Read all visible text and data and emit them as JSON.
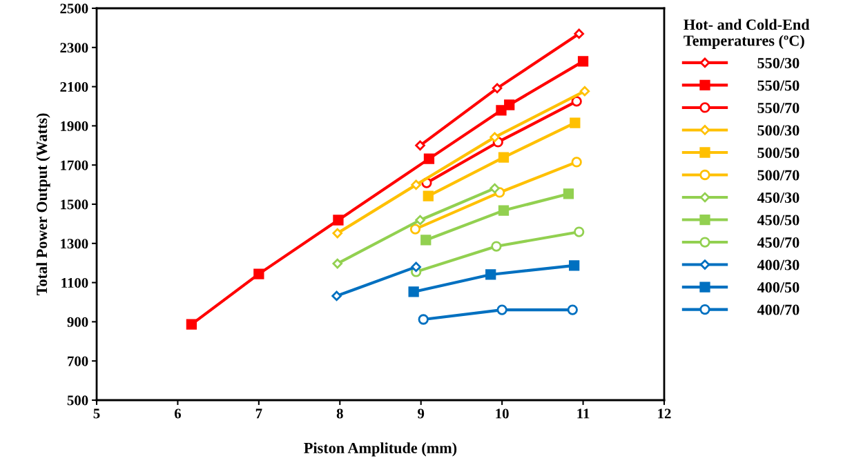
{
  "chart_data": {
    "type": "line",
    "xlabel": "Piston Amplitude (mm)",
    "ylabel": "Total Power Output (Watts)",
    "legend_title": "Hot- and Cold-End Temperatures (ºC)",
    "xlim": [
      5,
      12
    ],
    "xticks": [
      5,
      6,
      7,
      8,
      9,
      10,
      11,
      12
    ],
    "ylim": [
      500,
      2500
    ],
    "yticks": [
      500,
      700,
      900,
      1100,
      1300,
      1500,
      1700,
      1900,
      2100,
      2300,
      2500
    ],
    "grid": false,
    "legend": "right",
    "series": [
      {
        "name": "550/30",
        "color": "#ff0000",
        "marker": "diamond",
        "x": [
          8.99,
          9.94,
          10.95
        ],
        "values": [
          1800,
          2092,
          2370
        ]
      },
      {
        "name": "550/50",
        "color": "#ff0000",
        "marker": "square",
        "x": [
          6.17,
          7.0,
          7.98,
          9.1,
          9.99,
          10.09,
          11.0
        ],
        "values": [
          887,
          1144,
          1419,
          1732,
          1979,
          2007,
          2229
        ]
      },
      {
        "name": "550/70",
        "color": "#ff0000",
        "marker": "circle",
        "x": [
          9.07,
          9.95,
          10.92
        ],
        "values": [
          1609,
          1817,
          2025
        ]
      },
      {
        "name": "500/30",
        "color": "#ffc000",
        "marker": "diamond",
        "x": [
          7.97,
          8.94,
          9.91,
          11.02
        ],
        "values": [
          1352,
          1599,
          1842,
          2077
        ]
      },
      {
        "name": "500/50",
        "color": "#ffc000",
        "marker": "square",
        "x": [
          9.09,
          10.02,
          10.9
        ],
        "values": [
          1542,
          1739,
          1915
        ]
      },
      {
        "name": "500/70",
        "color": "#ffc000",
        "marker": "circle",
        "x": [
          8.93,
          9.97,
          10.92
        ],
        "values": [
          1373,
          1560,
          1715
        ]
      },
      {
        "name": "450/30",
        "color": "#92d050",
        "marker": "diamond",
        "x": [
          7.97,
          8.99,
          9.91
        ],
        "values": [
          1197,
          1419,
          1581
        ]
      },
      {
        "name": "450/50",
        "color": "#92d050",
        "marker": "square",
        "x": [
          9.06,
          10.02,
          10.82
        ],
        "values": [
          1317,
          1468,
          1553
        ]
      },
      {
        "name": "450/70",
        "color": "#92d050",
        "marker": "circle",
        "x": [
          8.94,
          9.93,
          10.95
        ],
        "values": [
          1155,
          1285,
          1359
        ]
      },
      {
        "name": "400/30",
        "color": "#0070c0",
        "marker": "diamond",
        "x": [
          7.96,
          8.94
        ],
        "values": [
          1032,
          1180
        ]
      },
      {
        "name": "400/50",
        "color": "#0070c0",
        "marker": "square",
        "x": [
          8.91,
          9.86,
          10.89
        ],
        "values": [
          1053,
          1141,
          1187
        ]
      },
      {
        "name": "400/70",
        "color": "#0070c0",
        "marker": "circle",
        "x": [
          9.03,
          10.0,
          10.87
        ],
        "values": [
          912,
          961,
          961
        ]
      }
    ]
  }
}
